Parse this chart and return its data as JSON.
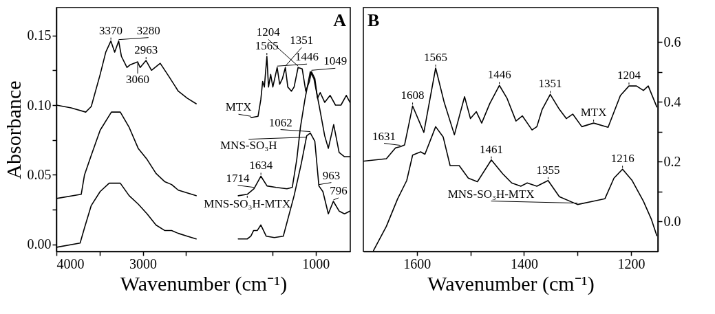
{
  "chart_data": [
    {
      "type": "line",
      "title": "A",
      "ylabel": "Absorbance",
      "xlabel": "Wavenumber (cm⁻¹)",
      "xlim": [
        4000,
        600
      ],
      "xticks": [
        4000,
        {
          "value": 3500,
          "label": null
        },
        3000,
        {
          "value": 2500,
          "label": null
        },
        {
          "value": 1500,
          "label": null
        },
        1000
      ],
      "ylim": [
        -0.005,
        0.17
      ],
      "yticks": [
        {
          "value": 0,
          "label": "0.00"
        },
        {
          "value": 0.025,
          "label": null
        },
        0.05,
        {
          "value": 0.075,
          "label": null
        },
        {
          "value": 0.1,
          "label": "0.10"
        },
        {
          "value": 0.125,
          "label": null
        },
        0.15
      ],
      "series": [
        {
          "color": "#000000",
          "x": [
            4000,
            3830,
            3661,
            3597,
            3494,
            3429,
            3370,
            3326,
            3280,
            3248,
            3184,
            3145,
            3060,
            3031,
            2963,
            2900,
            2799,
            2693,
            2590,
            2487,
            2383,
            2100,
            1750,
            1667,
            1635,
            1614,
            1594,
            1565,
            1546,
            1521,
            1496,
            1446,
            1417,
            1385,
            1351,
            1323,
            1281,
            1250,
            1204,
            1156,
            1115,
            1073,
            1049,
            1010,
            979,
            948,
            896,
            833,
            771,
            708,
            646,
            604
          ],
          "values": [
            0.1,
            0.098,
            0.095,
            0.099,
            0.122,
            0.138,
            0.146,
            0.138,
            0.146,
            0.135,
            0.127,
            0.129,
            0.131,
            0.127,
            0.132,
            0.125,
            0.13,
            0.12,
            0.11,
            0.105,
            0.101,
            null,
            0.091,
            0.092,
            0.104,
            0.117,
            0.113,
            0.135,
            0.113,
            0.122,
            0.113,
            0.127,
            0.115,
            0.119,
            0.127,
            0.113,
            0.11,
            0.113,
            0.127,
            0.126,
            0.11,
            0.117,
            0.124,
            0.119,
            0.105,
            0.109,
            0.102,
            0.107,
            0.1,
            0.1,
            0.107,
            0.102
          ]
        },
        {
          "color": "#000000",
          "x": [
            4000,
            3713,
            3675,
            3597,
            3494,
            3364,
            3261,
            3158,
            3054,
            2951,
            2848,
            2745,
            2667,
            2590,
            2487,
            2383,
            2100,
            1896,
            1792,
            1714,
            1634,
            1563,
            1458,
            1333,
            1271,
            1219,
            1177,
            1125,
            1063,
            1021,
            958,
            896,
            854,
            792,
            729,
            667,
            604
          ],
          "values": [
            0.033,
            0.036,
            0.05,
            0.064,
            0.082,
            0.095,
            0.095,
            0.084,
            0.069,
            0.061,
            0.051,
            0.045,
            0.043,
            0.039,
            0.037,
            0.035,
            null,
            0.035,
            0.036,
            0.04,
            0.049,
            0.042,
            0.041,
            0.04,
            0.041,
            0.061,
            0.084,
            0.104,
            0.124,
            0.119,
            0.099,
            0.078,
            0.069,
            0.086,
            0.066,
            0.063,
            0.063
          ]
        },
        {
          "color": "#000000",
          "x": [
            4000,
            3726,
            3675,
            3597,
            3494,
            3390,
            3261,
            3158,
            3054,
            2951,
            2848,
            2745,
            2667,
            2590,
            2487,
            2383,
            2100,
            1896,
            1792,
            1750,
            1719,
            1677,
            1635,
            1573,
            1479,
            1375,
            1250,
            1167,
            1104,
            1062,
            1010,
            963,
            917,
            854,
            796,
            729,
            667,
            604
          ],
          "values": [
            -0.002,
            0.001,
            0.012,
            0.028,
            0.038,
            0.044,
            0.044,
            0.035,
            0.029,
            0.022,
            0.014,
            0.01,
            0.01,
            0.008,
            0.006,
            0.004,
            null,
            0.004,
            0.004,
            0.006,
            0.01,
            0.01,
            0.014,
            0.006,
            0.005,
            0.006,
            0.035,
            0.058,
            0.078,
            0.08,
            0.074,
            0.042,
            0.038,
            0.022,
            0.031,
            0.024,
            0.022,
            0.024
          ]
        }
      ],
      "annotations": [
        {
          "text": "3370",
          "x": 3370,
          "y": 0.146
        },
        {
          "text": "3280",
          "x": 3280,
          "y": 0.146
        },
        {
          "text": "2963",
          "x": 2963,
          "y": 0.132
        },
        {
          "text": "3060",
          "x": 3060,
          "y": 0.131
        },
        {
          "text": "1565",
          "x": 1565,
          "y": 0.135
        },
        {
          "text": "1446",
          "x": 1446,
          "y": 0.127
        },
        {
          "text": "1351",
          "x": 1351,
          "y": 0.127
        },
        {
          "text": "1204",
          "x": 1204,
          "y": 0.127
        },
        {
          "text": "1049",
          "x": 1049,
          "y": 0.124
        },
        {
          "text": "1062",
          "x": 1062,
          "y": 0.08
        },
        {
          "text": "1634",
          "x": 1634,
          "y": 0.049
        },
        {
          "text": "1714",
          "x": 1714,
          "y": 0.04
        },
        {
          "text": "963",
          "x": 963,
          "y": 0.042
        },
        {
          "text": "796",
          "x": 796,
          "y": 0.031
        },
        {
          "text": "MTX",
          "x": 1750,
          "y": 0.091
        },
        {
          "text": "MNS-SO₃H-MTX",
          "x": 1792,
          "y": 0.036
        },
        {
          "text": "MNS-SO₃H",
          "x": 1104,
          "y": 0.078
        }
      ]
    },
    {
      "type": "line",
      "title": "B",
      "xlabel": "Wavenumber (cm⁻¹)",
      "xlim": [
        1700,
        1150
      ],
      "xticks": [
        1600,
        {
          "value": 1500,
          "label": null
        },
        1400,
        {
          "value": 1300,
          "label": null
        },
        1200
      ],
      "ylim": [
        -0.1,
        0.715
      ],
      "yticks": [
        {
          "value": 0,
          "label": "0.0"
        },
        {
          "value": 0.1,
          "label": null
        },
        0.2,
        {
          "value": 0.3,
          "label": null
        },
        0.4,
        {
          "value": 0.5,
          "label": null
        },
        0.6
      ],
      "series": [
        {
          "color": "#000000",
          "x": [
            1699,
            1657,
            1640,
            1631,
            1623,
            1608,
            1587,
            1565,
            1549,
            1530,
            1511,
            1500,
            1489,
            1479,
            1464,
            1446,
            1432,
            1415,
            1403,
            1385,
            1376,
            1366,
            1351,
            1334,
            1321,
            1309,
            1292,
            1270,
            1243,
            1220,
            1204,
            1190,
            1177,
            1168,
            1152
          ],
          "values": [
            0.202,
            0.21,
            0.246,
            0.25,
            0.256,
            0.386,
            0.298,
            0.513,
            0.398,
            0.29,
            0.417,
            0.344,
            0.367,
            0.329,
            0.394,
            0.455,
            0.413,
            0.336,
            0.353,
            0.306,
            0.317,
            0.375,
            0.425,
            0.375,
            0.344,
            0.359,
            0.317,
            0.329,
            0.315,
            0.421,
            0.453,
            0.453,
            0.438,
            0.453,
            0.383
          ]
        },
        {
          "color": "#000000",
          "x": [
            1681,
            1657,
            1636,
            1619,
            1608,
            1593,
            1585,
            1565,
            1551,
            1538,
            1521,
            1504,
            1487,
            1461,
            1440,
            1423,
            1406,
            1394,
            1376,
            1355,
            1334,
            1300,
            1270,
            1249,
            1232,
            1216,
            1198,
            1177,
            1162,
            1152
          ],
          "values": [
            -0.097,
            -0.016,
            0.076,
            0.137,
            0.222,
            0.233,
            0.225,
            0.317,
            0.283,
            0.187,
            0.187,
            0.145,
            0.133,
            0.206,
            0.16,
            0.129,
            0.118,
            0.129,
            0.118,
            0.137,
            0.083,
            0.057,
            0.068,
            0.076,
            0.145,
            0.175,
            0.137,
            0.068,
            0.007,
            -0.047
          ]
        }
      ],
      "annotations": [
        {
          "text": "1631",
          "x": 1631,
          "y": 0.25
        },
        {
          "text": "1608",
          "x": 1608,
          "y": 0.386
        },
        {
          "text": "1565",
          "x": 1565,
          "y": 0.513
        },
        {
          "text": "1461",
          "x": 1461,
          "y": 0.206
        },
        {
          "text": "1446",
          "x": 1446,
          "y": 0.455
        },
        {
          "text": "1351",
          "x": 1351,
          "y": 0.425
        },
        {
          "text": "1216",
          "x": 1216,
          "y": 0.175
        },
        {
          "text": "1204",
          "x": 1204,
          "y": 0.453
        },
        {
          "text": "1355",
          "x": 1355,
          "y": 0.137
        },
        {
          "text": "MTX",
          "x": 1270,
          "y": 0.329
        },
        {
          "text": "MNS-SO₃H-MTX",
          "x": 1300,
          "y": 0.057
        }
      ]
    }
  ]
}
